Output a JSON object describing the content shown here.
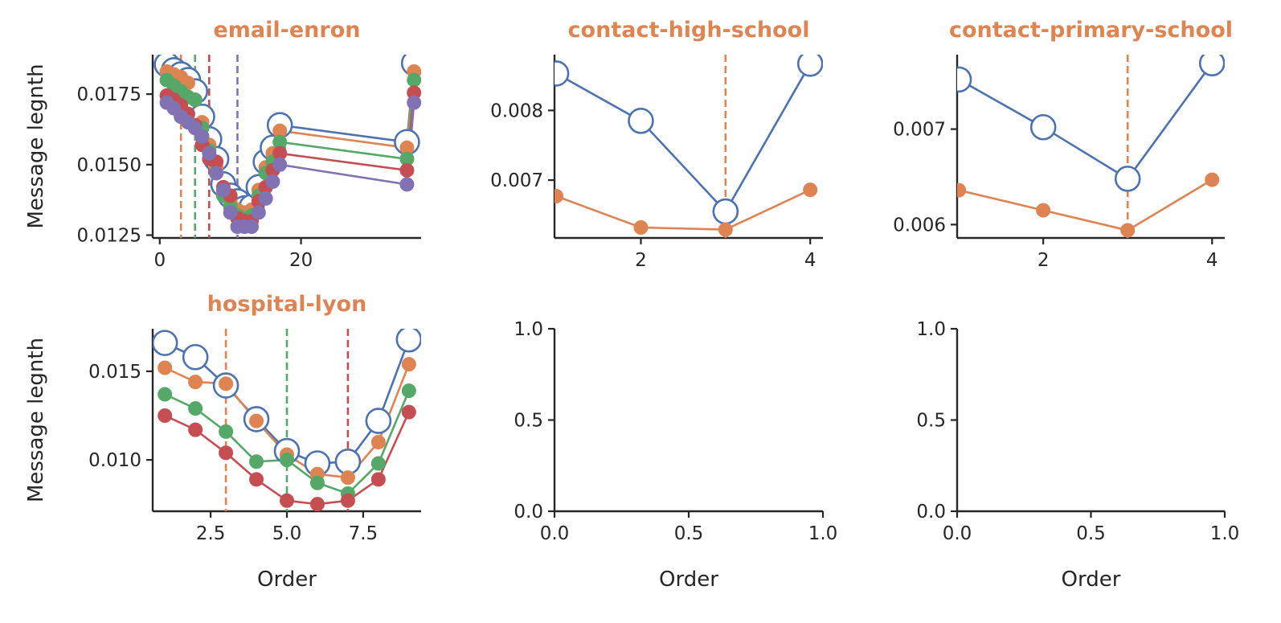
{
  "colors": {
    "title": "#DD8452",
    "axis": "#262626",
    "series": [
      "#4C72B0",
      "#DD8452",
      "#55A868",
      "#C44E52",
      "#8172B3"
    ]
  },
  "chart_data": [
    {
      "id": "email-enron",
      "type": "line",
      "title": "email-enron",
      "xlabel": "",
      "ylabel": "Message legnth",
      "xlim": [
        -1,
        37
      ],
      "ylim": [
        0.0124,
        0.0189
      ],
      "xticks": [
        0,
        20
      ],
      "xtick_labels": [
        "0",
        "20"
      ],
      "yticks": [
        0.0125,
        0.015,
        0.0175
      ],
      "ytick_labels": [
        "0.0125",
        "0.0150",
        "0.0175"
      ],
      "vlines": [
        {
          "x": 3,
          "color_index": 1
        },
        {
          "x": 5,
          "color_index": 2
        },
        {
          "x": 7,
          "color_index": 3
        },
        {
          "x": 11,
          "color_index": 4
        }
      ],
      "series": [
        {
          "style": "hollow",
          "color_index": 0,
          "x": [
            1,
            2,
            3,
            4,
            5,
            6,
            7,
            8,
            9,
            10,
            11,
            12,
            13,
            14,
            15,
            16,
            17,
            35,
            36
          ],
          "y": [
            0.01855,
            0.01835,
            0.0182,
            0.018,
            0.0176,
            0.0167,
            0.0159,
            0.0152,
            0.0143,
            0.0139,
            0.0137,
            0.01345,
            0.0135,
            0.0142,
            0.0151,
            0.0156,
            0.0164,
            0.0158,
            0.0186
          ]
        },
        {
          "style": "filled",
          "color_index": 1,
          "x": [
            1,
            2,
            3,
            4,
            5,
            6,
            7,
            8,
            9,
            10,
            11,
            12,
            13,
            14,
            15,
            16,
            17,
            35,
            36
          ],
          "y": [
            0.0183,
            0.0182,
            0.0181,
            0.0179,
            0.0173,
            0.0165,
            0.0157,
            0.0149,
            0.0141,
            0.0137,
            0.0134,
            0.0133,
            0.0134,
            0.0141,
            0.0149,
            0.0154,
            0.0162,
            0.0156,
            0.0183
          ]
        },
        {
          "style": "filled",
          "color_index": 2,
          "x": [
            1,
            2,
            3,
            4,
            5,
            6,
            7,
            8,
            9,
            10,
            11,
            12,
            13,
            14,
            15,
            16,
            17,
            35,
            36
          ],
          "y": [
            0.018,
            0.0178,
            0.0176,
            0.0174,
            0.0173,
            0.0163,
            0.0155,
            0.0147,
            0.0139,
            0.0135,
            0.0132,
            0.0131,
            0.0132,
            0.0139,
            0.0147,
            0.0151,
            0.0158,
            0.0152,
            0.018
          ]
        },
        {
          "style": "filled",
          "color_index": 3,
          "x": [
            1,
            2,
            3,
            4,
            5,
            6,
            7,
            8,
            9,
            10,
            11,
            12,
            13,
            14,
            15,
            16,
            17,
            35,
            36
          ],
          "y": [
            0.01745,
            0.0173,
            0.0171,
            0.0168,
            0.0164,
            0.0157,
            0.0152,
            0.0151,
            0.0142,
            0.0139,
            0.0131,
            0.013,
            0.013,
            0.0137,
            0.0142,
            0.0148,
            0.0154,
            0.0148,
            0.01755
          ]
        },
        {
          "style": "filled",
          "color_index": 4,
          "x": [
            1,
            2,
            3,
            4,
            5,
            6,
            7,
            8,
            9,
            10,
            11,
            12,
            13,
            14,
            15,
            16,
            17,
            35,
            36
          ],
          "y": [
            0.0172,
            0.017,
            0.0167,
            0.0165,
            0.0163,
            0.016,
            0.0154,
            0.0147,
            0.0141,
            0.0133,
            0.0128,
            0.0128,
            0.0128,
            0.0133,
            0.0138,
            0.0144,
            0.015,
            0.0143,
            0.0172
          ]
        }
      ]
    },
    {
      "id": "contact-high-school",
      "type": "line",
      "title": "contact-high-school",
      "xlabel": "",
      "ylabel": "",
      "xlim": [
        0.98,
        4.15
      ],
      "ylim": [
        0.00617,
        0.0088
      ],
      "xticks": [
        2,
        4
      ],
      "xtick_labels": [
        "2",
        "4"
      ],
      "yticks": [
        0.007,
        0.008
      ],
      "ytick_labels": [
        "0.007",
        "0.008"
      ],
      "vlines": [
        {
          "x": 3,
          "color_index": 1
        }
      ],
      "series": [
        {
          "style": "hollow",
          "color_index": 0,
          "x": [
            1,
            2,
            3,
            4
          ],
          "y": [
            0.00853,
            0.00785,
            0.00655,
            0.00867
          ]
        },
        {
          "style": "filled",
          "color_index": 1,
          "x": [
            1,
            2,
            3,
            4
          ],
          "y": [
            0.00677,
            0.00632,
            0.00629,
            0.00686
          ]
        }
      ]
    },
    {
      "id": "contact-primary-school",
      "type": "line",
      "title": "contact-primary-school",
      "xlabel": "",
      "ylabel": "",
      "xlim": [
        0.98,
        4.15
      ],
      "ylim": [
        0.00586,
        0.00778
      ],
      "xticks": [
        2,
        4
      ],
      "xtick_labels": [
        "2",
        "4"
      ],
      "yticks": [
        0.006,
        0.007
      ],
      "ytick_labels": [
        "0.006",
        "0.007"
      ],
      "vlines": [
        {
          "x": 3,
          "color_index": 1
        }
      ],
      "series": [
        {
          "style": "hollow",
          "color_index": 0,
          "x": [
            1,
            2,
            3,
            4
          ],
          "y": [
            0.00752,
            0.00702,
            0.00648,
            0.00769
          ]
        },
        {
          "style": "filled",
          "color_index": 1,
          "x": [
            1,
            2,
            3,
            4
          ],
          "y": [
            0.00636,
            0.00615,
            0.00594,
            0.00647
          ]
        }
      ]
    },
    {
      "id": "hospital-lyon",
      "type": "line",
      "title": "hospital-lyon",
      "xlabel": "Order",
      "ylabel": "Message legnth",
      "xlim": [
        0.6,
        9.4
      ],
      "ylim": [
        0.0071,
        0.0174
      ],
      "xticks": [
        2.5,
        5.0,
        7.5
      ],
      "xtick_labels": [
        "2.5",
        "5.0",
        "7.5"
      ],
      "yticks": [
        0.01,
        0.015
      ],
      "ytick_labels": [
        "0.010",
        "0.015"
      ],
      "vlines": [
        {
          "x": 3,
          "color_index": 1
        },
        {
          "x": 5,
          "color_index": 2
        },
        {
          "x": 7,
          "color_index": 3
        }
      ],
      "series": [
        {
          "style": "hollow",
          "color_index": 0,
          "x": [
            1,
            2,
            3,
            4,
            5,
            6,
            7,
            8,
            9
          ],
          "y": [
            0.0166,
            0.0158,
            0.0142,
            0.0123,
            0.0105,
            0.0098,
            0.0099,
            0.0122,
            0.0168
          ]
        },
        {
          "style": "filled",
          "color_index": 1,
          "x": [
            1,
            2,
            3,
            4,
            5,
            6,
            7,
            8,
            9
          ],
          "y": [
            0.0152,
            0.0144,
            0.0143,
            0.0122,
            0.0103,
            0.0092,
            0.009,
            0.011,
            0.0154
          ]
        },
        {
          "style": "filled",
          "color_index": 2,
          "x": [
            1,
            2,
            3,
            4,
            5,
            6,
            7,
            8,
            9
          ],
          "y": [
            0.0137,
            0.0129,
            0.0116,
            0.0099,
            0.01,
            0.0087,
            0.0081,
            0.0098,
            0.0139
          ]
        },
        {
          "style": "filled",
          "color_index": 3,
          "x": [
            1,
            2,
            3,
            4,
            5,
            6,
            7,
            8,
            9
          ],
          "y": [
            0.0125,
            0.0117,
            0.0104,
            0.0089,
            0.0077,
            0.0075,
            0.0077,
            0.0089,
            0.0127
          ]
        }
      ]
    },
    {
      "id": "empty-1",
      "type": "line",
      "title": "",
      "xlabel": "Order",
      "ylabel": "",
      "xlim": [
        0,
        1
      ],
      "ylim": [
        0,
        1
      ],
      "xticks": [
        0,
        0.5,
        1
      ],
      "xtick_labels": [
        "0.0",
        "0.5",
        "1.0"
      ],
      "yticks": [
        0,
        0.5,
        1
      ],
      "ytick_labels": [
        "0.0",
        "0.5",
        "1.0"
      ],
      "vlines": [],
      "series": []
    },
    {
      "id": "empty-2",
      "type": "line",
      "title": "",
      "xlabel": "Order",
      "ylabel": "",
      "xlim": [
        0,
        1
      ],
      "ylim": [
        0,
        1
      ],
      "xticks": [
        0,
        0.5,
        1
      ],
      "xtick_labels": [
        "0.0",
        "0.5",
        "1.0"
      ],
      "yticks": [
        0,
        0.5,
        1
      ],
      "ytick_labels": [
        "0.0",
        "0.5",
        "1.0"
      ],
      "vlines": [],
      "series": []
    }
  ]
}
